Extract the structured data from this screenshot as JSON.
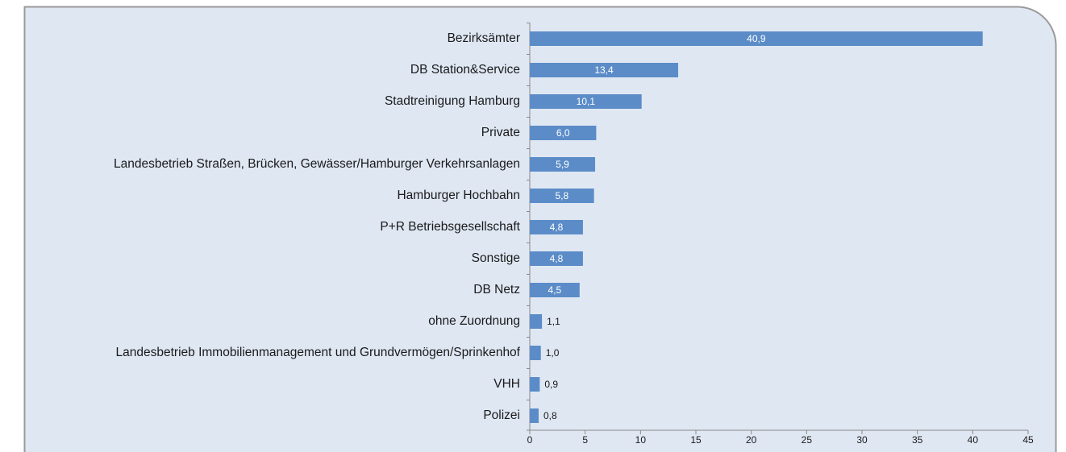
{
  "chart_data": {
    "type": "hbar",
    "categories": [
      "Bezirksämter",
      "DB Station&Service",
      "Stadtreinigung Hamburg",
      "Private",
      "Landesbetrieb Straßen, Brücken, Gewässer/Hamburger Verkehrsanlagen",
      "Hamburger Hochbahn",
      "P+R Betriebsgesellschaft",
      "Sonstige",
      "DB Netz",
      "ohne Zuordnung",
      "Landesbetrieb Immobilienmanagement und Grundvermögen/Sprinkenhof",
      "VHH",
      "Polizei"
    ],
    "values": [
      40.9,
      13.4,
      10.1,
      6.0,
      5.9,
      5.8,
      4.8,
      4.8,
      4.5,
      1.1,
      1.0,
      0.9,
      0.8
    ],
    "value_labels": [
      "40,9",
      "13,4",
      "10,1",
      "6,0",
      "5,9",
      "5,8",
      "4,8",
      "4,8",
      "4,5",
      "1,1",
      "1,0",
      "0,9",
      "0,8"
    ],
    "color": "#5b8cc8",
    "xlim": [
      0,
      45
    ],
    "xticks": [
      0,
      5,
      10,
      15,
      20,
      25,
      30,
      35,
      40,
      45
    ]
  }
}
